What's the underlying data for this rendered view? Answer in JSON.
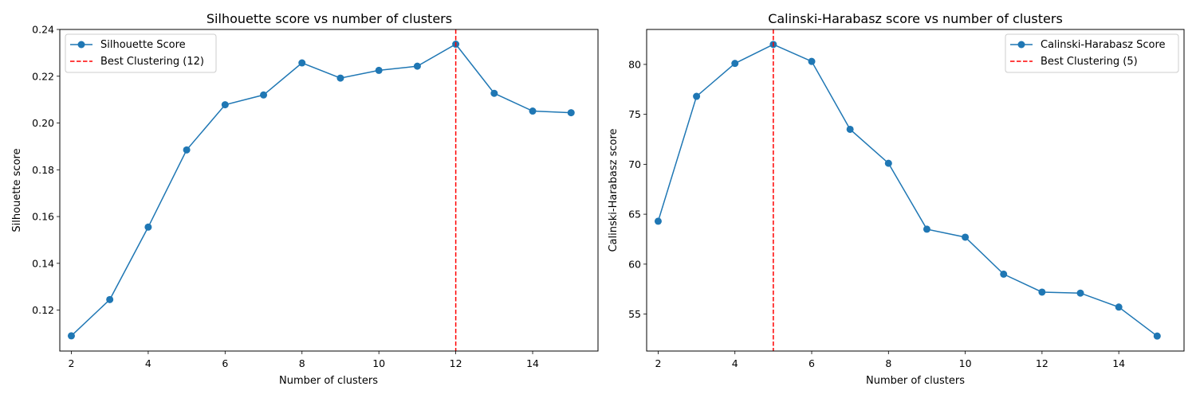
{
  "chart_data": [
    {
      "type": "line",
      "title": "Silhouette score vs number of clusters",
      "xlabel": "Number of clusters",
      "ylabel": "Silhouette score",
      "xlim": [
        1.7,
        15.7
      ],
      "ylim": [
        0.1025,
        0.24
      ],
      "xticks": [
        2,
        4,
        6,
        8,
        10,
        12,
        14
      ],
      "xtick_labels": [
        "2",
        "4",
        "6",
        "8",
        "10",
        "12",
        "14"
      ],
      "yticks": [
        0.12,
        0.14,
        0.16,
        0.18,
        0.2,
        0.22,
        0.24
      ],
      "ytick_labels": [
        "0.12",
        "0.14",
        "0.16",
        "0.18",
        "0.20",
        "0.22",
        "0.24"
      ],
      "grid": false,
      "legend_position": "top-left",
      "series": [
        {
          "name": "Silhouette Score",
          "color": "#1f77b4",
          "marker": "circle",
          "x": [
            2,
            3,
            4,
            5,
            6,
            7,
            8,
            9,
            10,
            11,
            12,
            13,
            14,
            15
          ],
          "y": [
            0.109,
            0.1245,
            0.1555,
            0.1885,
            0.2078,
            0.212,
            0.2257,
            0.2192,
            0.2225,
            0.2243,
            0.2337,
            0.2127,
            0.2051,
            0.2044
          ]
        }
      ],
      "reference_line": {
        "name": "Best Clustering (12)",
        "orientation": "vertical",
        "x": 12,
        "color": "#ff0000",
        "style": "dashed"
      }
    },
    {
      "type": "line",
      "title": "Calinski-Harabasz score vs number of clusters",
      "xlabel": "Number of clusters",
      "ylabel": "Calinski-Harabasz score",
      "xlim": [
        1.7,
        15.7
      ],
      "ylim": [
        51.3,
        83.5
      ],
      "xticks": [
        2,
        4,
        6,
        8,
        10,
        12,
        14
      ],
      "xtick_labels": [
        "2",
        "4",
        "6",
        "8",
        "10",
        "12",
        "14"
      ],
      "yticks": [
        55,
        60,
        65,
        70,
        75,
        80
      ],
      "ytick_labels": [
        "55",
        "60",
        "65",
        "70",
        "75",
        "80"
      ],
      "grid": false,
      "legend_position": "top-right",
      "series": [
        {
          "name": "Calinski-Harabasz Score",
          "color": "#1f77b4",
          "marker": "circle",
          "x": [
            2,
            3,
            4,
            5,
            6,
            7,
            8,
            9,
            10,
            11,
            12,
            13,
            14,
            15
          ],
          "y": [
            64.3,
            76.8,
            80.1,
            82.0,
            80.3,
            73.5,
            70.1,
            63.5,
            62.7,
            59.0,
            57.2,
            57.1,
            55.7,
            52.8
          ]
        }
      ],
      "reference_line": {
        "name": "Best Clustering (5)",
        "orientation": "vertical",
        "x": 5,
        "color": "#ff0000",
        "style": "dashed"
      }
    }
  ]
}
